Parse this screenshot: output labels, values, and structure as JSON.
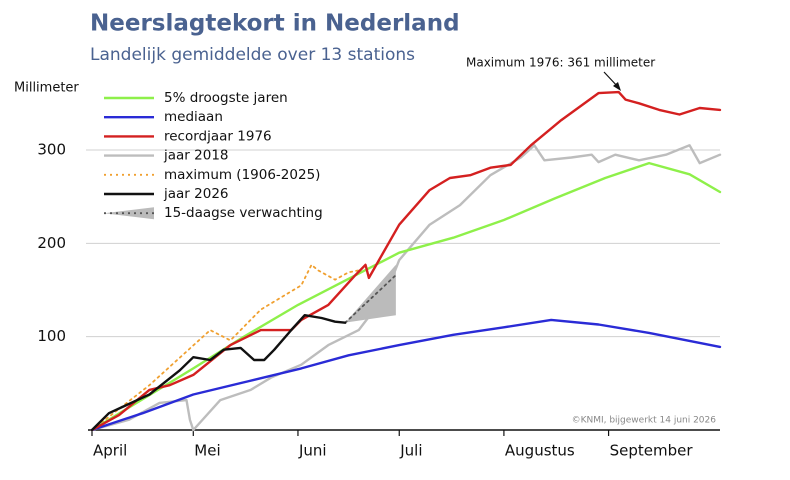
{
  "chart_data": {
    "type": "line",
    "title": "Neerslagtekort in Nederland",
    "subtitle": "Landelijk gemiddelde over 13 stations",
    "y_label": "Millimeter",
    "annotation": "Maximum 1976: 361 millimeter",
    "credit": "©KNMI, bijgewerkt 14 juni 2026",
    "legend": "upper left",
    "grid": true,
    "xlim": [
      0,
      186
    ],
    "xticks": [
      {
        "value": 0,
        "label": "April"
      },
      {
        "value": 30,
        "label": "Mei"
      },
      {
        "value": 61,
        "label": "Juni"
      },
      {
        "value": 91,
        "label": "Juli"
      },
      {
        "value": 122,
        "label": "Augustus"
      },
      {
        "value": 153,
        "label": "September"
      }
    ],
    "ylim": [
      0,
      375
    ],
    "yticks": [
      100,
      200,
      300
    ],
    "series": [
      {
        "name": "5% droogste jaren",
        "color": "#8ef04a",
        "style": "solid",
        "x": [
          0,
          15,
          30,
          45,
          61,
          76,
          91,
          107,
          122,
          137,
          152,
          165,
          177,
          186
        ],
        "values": [
          0,
          33,
          66,
          100,
          134,
          162,
          190,
          206,
          225,
          248,
          270,
          286,
          274,
          255
        ]
      },
      {
        "name": "mediaan",
        "color": "#2a2bd6",
        "style": "solid",
        "x": [
          0,
          15,
          30,
          46,
          62,
          76,
          91,
          107,
          122,
          136,
          150,
          165,
          186
        ],
        "values": [
          0,
          18,
          38,
          52,
          66,
          80,
          91,
          102,
          110,
          118,
          113,
          104,
          89
        ]
      },
      {
        "name": "recordjaar 1976",
        "color": "#d42020",
        "style": "solid",
        "x": [
          0,
          8,
          17,
          23,
          30,
          41,
          50,
          59,
          62,
          70,
          78,
          81,
          82,
          85,
          91,
          100,
          106,
          112,
          118,
          124,
          130,
          139,
          150,
          156,
          158,
          162,
          168,
          174,
          180,
          186
        ],
        "values": [
          0,
          16,
          43,
          48,
          59,
          91,
          107,
          107,
          118,
          134,
          166,
          177,
          163,
          182,
          220,
          257,
          270,
          273,
          281,
          284,
          305,
          332,
          361,
          362,
          354,
          350,
          343,
          338,
          345,
          343
        ]
      },
      {
        "name": "jaar 2018",
        "color": "#bdbdbd",
        "style": "solid",
        "x": [
          0,
          11,
          20,
          28,
          29,
          30,
          38,
          47,
          53,
          62,
          70,
          79,
          87,
          91,
          100,
          109,
          118,
          127,
          131,
          134,
          142,
          148,
          150,
          155,
          162,
          170,
          177,
          180,
          186
        ],
        "values": [
          0,
          11,
          29,
          32,
          11,
          0,
          32,
          43,
          56,
          70,
          91,
          107,
          145,
          182,
          220,
          241,
          273,
          292,
          305,
          289,
          292,
          295,
          287,
          295,
          289,
          295,
          305,
          286,
          295
        ]
      },
      {
        "name": "maximum (1906-2025)",
        "color": "#f0a030",
        "style": "dotted",
        "x": [
          0,
          17,
          35,
          41,
          50,
          62,
          65,
          67,
          72,
          76,
          79
        ],
        "values": [
          0,
          48,
          107,
          96,
          129,
          155,
          177,
          171,
          161,
          169,
          171
        ]
      },
      {
        "name": "jaar 2026",
        "color": "#111111",
        "style": "solid",
        "x": [
          0,
          5,
          17,
          26,
          30,
          35,
          39,
          44,
          48,
          51,
          54,
          59,
          63,
          68,
          72,
          75
        ],
        "values": [
          0,
          18,
          38,
          64,
          78,
          75,
          86,
          88,
          75,
          75,
          86,
          107,
          123,
          120,
          116,
          115
        ]
      },
      {
        "name": "15-daagse verwachting",
        "color": "#555555",
        "style": "dotted",
        "band_color": "#bbbbbb",
        "x": [
          75,
          90
        ],
        "values": [
          115,
          166
        ],
        "band_low": [
          115,
          123
        ],
        "band_high": [
          115,
          177
        ]
      }
    ]
  }
}
